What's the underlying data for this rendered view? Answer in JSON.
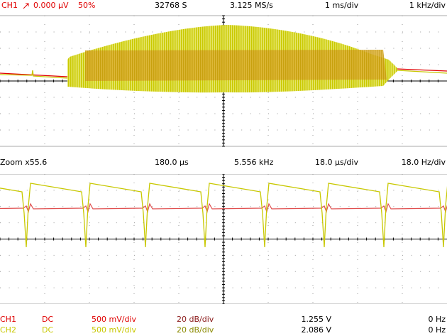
{
  "header": {
    "channel": "CH1",
    "trigger_level": "0.000 µV",
    "trigger_position": "50%",
    "samples": "32768 S",
    "sample_rate": "3.125 MS/s",
    "time_div": "1 ms/div",
    "freq_div": "1 kHz/div"
  },
  "zoom_bar": {
    "zoom": "Zoom x55.6",
    "span": "180.0 µs",
    "frequency": "5.556 kHz",
    "time_div": "18.0 µs/div",
    "freq_div": "18.0 Hz/div"
  },
  "channels": [
    {
      "name": "CH1",
      "coupling": "DC",
      "volts_div": "500 mV/div",
      "db_div": "20 dB/div",
      "value": "1.255 V",
      "freq": "0 Hz"
    },
    {
      "name": "CH2",
      "coupling": "DC",
      "volts_div": "500 mV/div",
      "db_div": "20 dB/div",
      "value": "2.086 V",
      "freq": "0 Hz"
    }
  ]
}
